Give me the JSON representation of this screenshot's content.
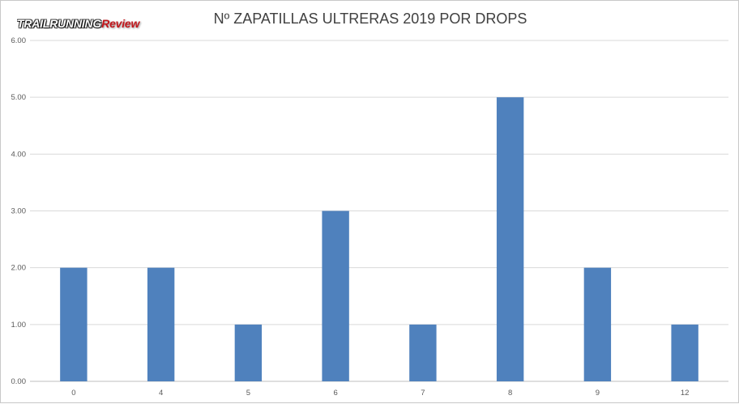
{
  "logo": {
    "part1": "TRAILRUNNING",
    "part2": "Review"
  },
  "chart_data": {
    "type": "bar",
    "title": "Nº ZAPATILLAS ULTRERAS 2019 POR  DROPS",
    "xlabel": "",
    "ylabel": "",
    "categories": [
      "0",
      "4",
      "5",
      "6",
      "7",
      "8",
      "9",
      "12"
    ],
    "values": [
      2,
      2,
      1,
      3,
      1,
      5,
      2,
      1
    ],
    "ylim": [
      0,
      6
    ],
    "yticks": [
      "0.00",
      "1.00",
      "2.00",
      "3.00",
      "4.00",
      "5.00",
      "6.00"
    ],
    "grid": true,
    "legend": "none",
    "bar_color": "#4f81bd"
  }
}
